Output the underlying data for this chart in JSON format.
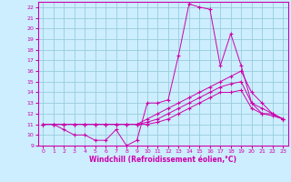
{
  "xlabel": "Windchill (Refroidissement éolien,°C)",
  "ylabel": "",
  "xlim": [
    -0.5,
    23.5
  ],
  "ylim": [
    9,
    22.5
  ],
  "yticks": [
    9,
    10,
    11,
    12,
    13,
    14,
    15,
    16,
    17,
    18,
    19,
    20,
    21,
    22
  ],
  "xticks": [
    0,
    1,
    2,
    3,
    4,
    5,
    6,
    7,
    8,
    9,
    10,
    11,
    12,
    13,
    14,
    15,
    16,
    17,
    18,
    19,
    20,
    21,
    22,
    23
  ],
  "bg_color": "#cceeff",
  "line_color": "#cc00aa",
  "grid_color": "#99ccdd",
  "line1_x": [
    0,
    1,
    2,
    3,
    4,
    5,
    6,
    7,
    8,
    9,
    10,
    11,
    12,
    13,
    14,
    15,
    16,
    17,
    18,
    19,
    20,
    21,
    22,
    23
  ],
  "line1_y": [
    11,
    11,
    10.5,
    10,
    10,
    9.5,
    9.5,
    10.5,
    9.0,
    9.5,
    13,
    13,
    13.3,
    17.5,
    22.3,
    22,
    21.8,
    16.5,
    19.5,
    16.5,
    13,
    12,
    12,
    11.5
  ],
  "line2_x": [
    0,
    1,
    2,
    3,
    4,
    5,
    6,
    7,
    8,
    9,
    10,
    11,
    12,
    13,
    14,
    15,
    16,
    17,
    18,
    19,
    20,
    21,
    22,
    23
  ],
  "line2_y": [
    11,
    11,
    11,
    11,
    11,
    11,
    11,
    11,
    11,
    11,
    11.5,
    12,
    12.5,
    13,
    13.5,
    14,
    14.5,
    15,
    15.5,
    16,
    14,
    13,
    12,
    11.5
  ],
  "line3_x": [
    0,
    1,
    2,
    3,
    4,
    5,
    6,
    7,
    8,
    9,
    10,
    11,
    12,
    13,
    14,
    15,
    16,
    17,
    18,
    19,
    20,
    21,
    22,
    23
  ],
  "line3_y": [
    11,
    11,
    11,
    11,
    11,
    11,
    11,
    11,
    11,
    11,
    11.2,
    11.5,
    12,
    12.5,
    13,
    13.5,
    14,
    14.5,
    14.8,
    15,
    13,
    12.5,
    12,
    11.5
  ],
  "line4_x": [
    0,
    1,
    2,
    3,
    4,
    5,
    6,
    7,
    8,
    9,
    10,
    11,
    12,
    13,
    14,
    15,
    16,
    17,
    18,
    19,
    20,
    21,
    22,
    23
  ],
  "line4_y": [
    11,
    11,
    11,
    11,
    11,
    11,
    11,
    11,
    11,
    11,
    11,
    11.2,
    11.5,
    12,
    12.5,
    13,
    13.5,
    14,
    14,
    14.2,
    12.5,
    12,
    11.8,
    11.5
  ]
}
